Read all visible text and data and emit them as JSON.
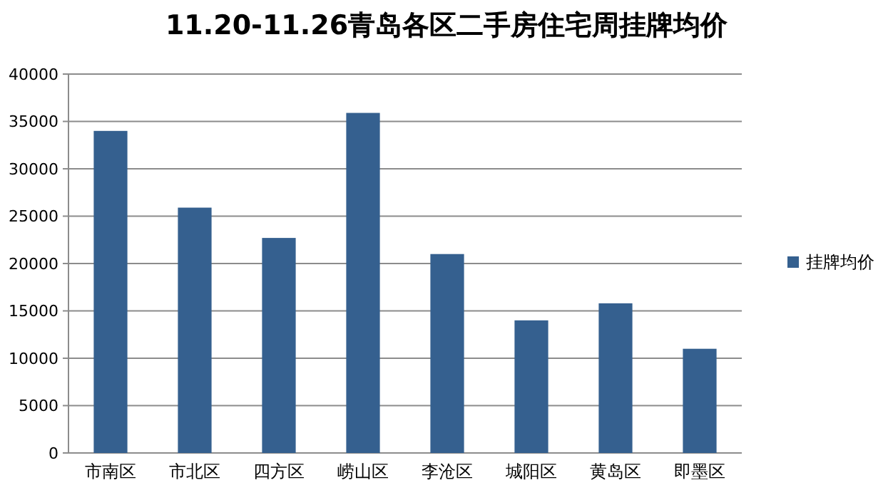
{
  "chart_data": {
    "type": "bar",
    "title": "11.20-11.26青岛各区二手房住宅周挂牌均价",
    "categories": [
      "市南区",
      "市北区",
      "四方区",
      "崂山区",
      "李沧区",
      "城阳区",
      "黄岛区",
      "即墨区"
    ],
    "series": [
      {
        "name": "挂牌均价",
        "color": "#35608f",
        "values": [
          34000,
          25900,
          22700,
          35900,
          21000,
          14000,
          15800,
          11000
        ]
      }
    ],
    "ylim": [
      0,
      40000
    ],
    "yticks": [
      0,
      5000,
      10000,
      15000,
      20000,
      25000,
      30000,
      35000,
      40000
    ],
    "grid": "y",
    "legend": "right"
  }
}
